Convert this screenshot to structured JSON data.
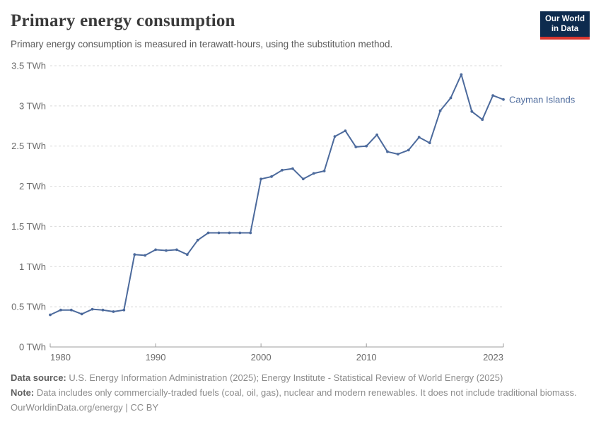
{
  "header": {
    "title": "Primary energy consumption",
    "subtitle": "Primary energy consumption is measured in terawatt-hours, using the substitution method."
  },
  "logo": {
    "line1": "Our World",
    "line2": "in Data",
    "bg_color": "#0d2b4e",
    "accent_color": "#d7362f"
  },
  "chart_data": {
    "type": "line",
    "title": "Primary energy consumption",
    "unit": "TWh",
    "grid": true,
    "legend_position": "end-of-line",
    "xlim": [
      1980,
      2023
    ],
    "ylim": [
      0,
      3.5
    ],
    "x": [
      1980,
      1981,
      1982,
      1983,
      1984,
      1985,
      1986,
      1987,
      1988,
      1989,
      1990,
      1991,
      1992,
      1993,
      1994,
      1995,
      1996,
      1997,
      1998,
      1999,
      2000,
      2001,
      2002,
      2003,
      2004,
      2005,
      2006,
      2007,
      2008,
      2009,
      2010,
      2011,
      2012,
      2013,
      2014,
      2015,
      2016,
      2017,
      2018,
      2019,
      2020,
      2021,
      2022,
      2023
    ],
    "series": [
      {
        "name": "Cayman Islands",
        "color": "#4C6A9C",
        "values": [
          0.4,
          0.46,
          0.46,
          0.41,
          0.47,
          0.46,
          0.44,
          0.46,
          1.15,
          1.14,
          1.21,
          1.2,
          1.21,
          1.15,
          1.33,
          1.42,
          1.42,
          1.42,
          1.42,
          1.42,
          2.09,
          2.12,
          2.2,
          2.22,
          2.09,
          2.16,
          2.19,
          2.62,
          2.69,
          2.49,
          2.5,
          2.64,
          2.43,
          2.4,
          2.45,
          2.61,
          2.54,
          2.94,
          3.1,
          3.39,
          2.93,
          2.83,
          3.13,
          3.08
        ]
      }
    ],
    "y_ticks": [
      {
        "value": 0,
        "label": "0 TWh"
      },
      {
        "value": 0.5,
        "label": "0.5 TWh"
      },
      {
        "value": 1,
        "label": "1 TWh"
      },
      {
        "value": 1.5,
        "label": "1.5 TWh"
      },
      {
        "value": 2,
        "label": "2 TWh"
      },
      {
        "value": 2.5,
        "label": "2.5 TWh"
      },
      {
        "value": 3,
        "label": "3 TWh"
      },
      {
        "value": 3.5,
        "label": "3.5 TWh"
      }
    ],
    "x_ticks": [
      {
        "value": 1980,
        "label": "1980"
      },
      {
        "value": 1990,
        "label": "1990"
      },
      {
        "value": 2000,
        "label": "2000"
      },
      {
        "value": 2010,
        "label": "2010"
      },
      {
        "value": 2023,
        "label": "2023"
      }
    ]
  },
  "footer": {
    "source_label": "Data source:",
    "source_text": "U.S. Energy Information Administration (2025); Energy Institute - Statistical Review of World Energy (2025)",
    "note_label": "Note:",
    "note_text": "Data includes only commercially-traded fuels (coal, oil, gas), nuclear and modern renewables. It does not include traditional biomass.",
    "link_text": "OurWorldinData.org/energy | CC BY"
  }
}
